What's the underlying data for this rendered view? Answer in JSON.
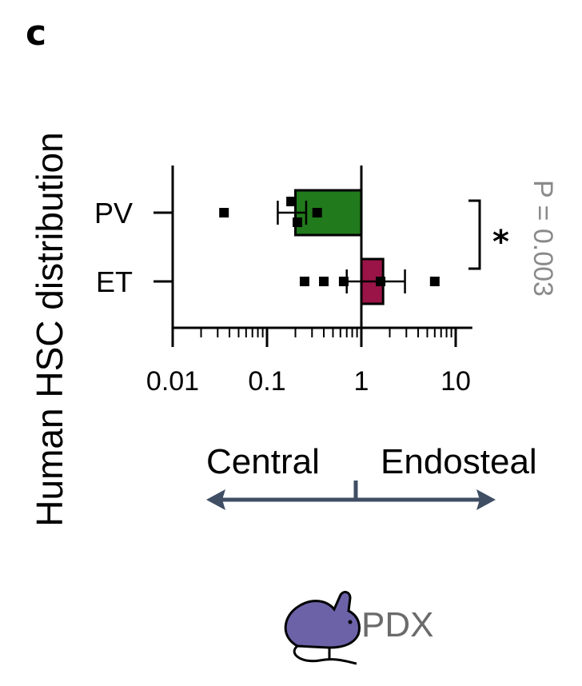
{
  "panel_letter": "c",
  "chart_data": {
    "type": "bar",
    "orientation": "horizontal",
    "ylabel": "Human HSC distribution",
    "xscale": "log",
    "xlim": [
      0.01,
      15
    ],
    "x_ticks": [
      0.01,
      0.1,
      1,
      10
    ],
    "x_tick_labels": [
      "0.01",
      "0.1",
      "1",
      "10"
    ],
    "baseline": 1,
    "categories": [
      "PV",
      "ET"
    ],
    "values": [
      0.2,
      1.7
    ],
    "errors": [
      {
        "low": 0.13,
        "high": 0.26
      },
      {
        "low": 0.7,
        "high": 2.9
      }
    ],
    "points": [
      [
        0.035,
        0.18,
        0.21,
        0.34
      ],
      [
        0.25,
        0.4,
        0.65,
        1.6,
        6.0
      ]
    ],
    "colors": [
      "#217a1b",
      "#9b1447"
    ],
    "significance": {
      "marker": "*",
      "p_text": "P = 0.003"
    },
    "direction_labels": {
      "left": "Central",
      "right": "Endosteal"
    },
    "arrow_color": "#3f4e63"
  },
  "model": {
    "label": "PDX",
    "icon": "mouse-icon",
    "icon_color": "#6b62a8"
  }
}
